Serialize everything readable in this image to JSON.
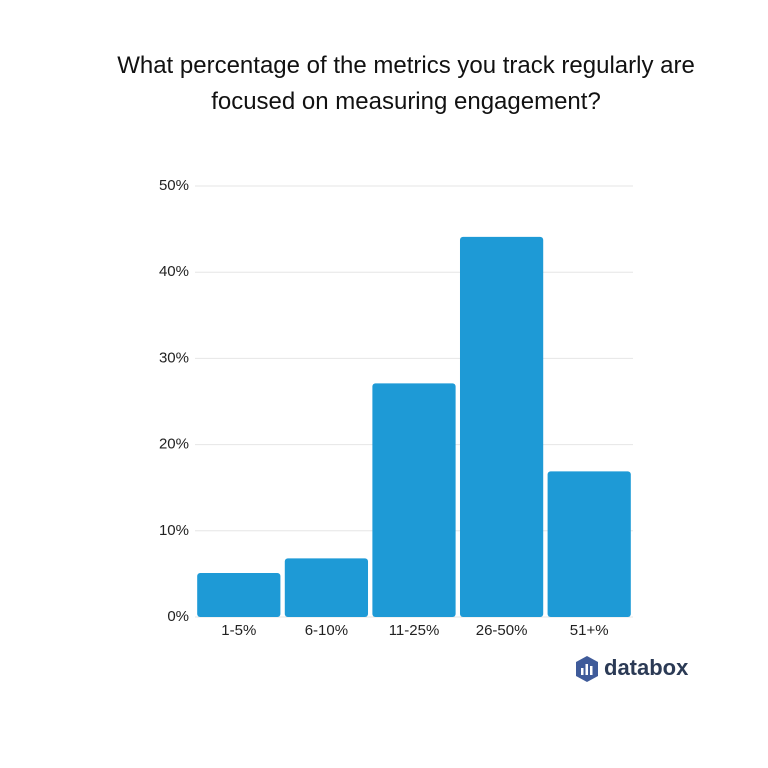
{
  "chart_data": {
    "type": "bar",
    "title": "What percentage of the metrics you track regularly are focused on measuring engagement?",
    "categories": [
      "1-5%",
      "6-10%",
      "11-25%",
      "26-50%",
      "51+%"
    ],
    "values": [
      5.1,
      6.8,
      27.1,
      44.1,
      16.9
    ],
    "color": "#1e9ad6",
    "ylim": [
      0,
      50
    ],
    "yticks": [
      {
        "value": 0,
        "label": "0%"
      },
      {
        "value": 10,
        "label": "10%"
      },
      {
        "value": 20,
        "label": "20%"
      },
      {
        "value": 30,
        "label": "30%"
      },
      {
        "value": 40,
        "label": "40%"
      },
      {
        "value": 50,
        "label": "50%"
      }
    ],
    "grid": true
  },
  "brand": "databox"
}
